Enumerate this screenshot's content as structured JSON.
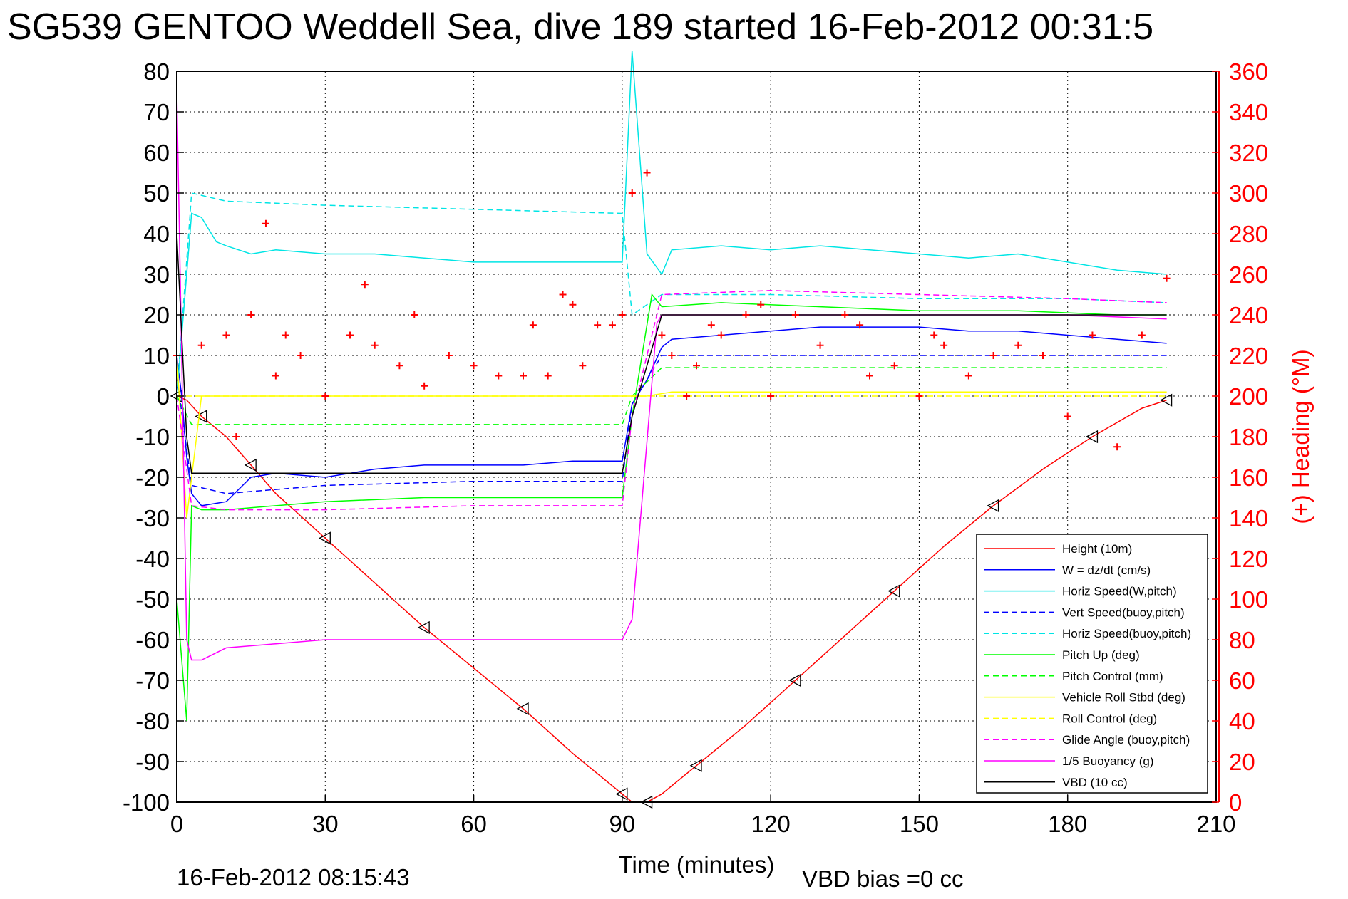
{
  "colors": {
    "height": "#ff0000",
    "w": "#0000ff",
    "horiz_speed": "#00e5e5",
    "pitch": "#00ff00",
    "roll": "#ffff00",
    "glide": "#ff00ff",
    "buoyancy": "#ff00ff",
    "vbd": "#000000",
    "heading": "#ff0000"
  },
  "chart_data": {
    "type": "line",
    "title": "SG539 GENTOO Weddell Sea, dive 189 started 16-Feb-2012 00:31:5",
    "xlabel": "Time (minutes)",
    "ylabel": "",
    "y2label": "(+) Heading (°M)",
    "xlim": [
      0,
      210
    ],
    "ylim": [
      -100,
      80
    ],
    "y2lim": [
      0,
      360
    ],
    "xticks": [
      "0",
      "30",
      "60",
      "90",
      "120",
      "150",
      "180",
      "210"
    ],
    "yticks": [
      "80",
      "70",
      "60",
      "50",
      "40",
      "30",
      "20",
      "10",
      "0",
      "-10",
      "-20",
      "-30",
      "-40",
      "-50",
      "-60",
      "-70",
      "-80",
      "-90",
      "-100"
    ],
    "y2ticks": [
      "360",
      "340",
      "320",
      "300",
      "280",
      "260",
      "240",
      "220",
      "200",
      "180",
      "160",
      "140",
      "120",
      "100",
      "80",
      "60",
      "40",
      "20",
      "0"
    ],
    "grid": true,
    "legend_position": "bottom-right",
    "legend": [
      {
        "label": "Height (10m)",
        "color": "#ff0000",
        "dash": false
      },
      {
        "label": "W = dz/dt (cm/s)",
        "color": "#0000ff",
        "dash": false
      },
      {
        "label": "Horiz Speed(W,pitch)",
        "color": "#00e5e5",
        "dash": false
      },
      {
        "label": "Vert Speed(buoy,pitch)",
        "color": "#0000ff",
        "dash": true
      },
      {
        "label": "Horiz Speed(buoy,pitch)",
        "color": "#00e5e5",
        "dash": true
      },
      {
        "label": "Pitch Up (deg)",
        "color": "#00ff00",
        "dash": false
      },
      {
        "label": "Pitch Control (mm)",
        "color": "#00ff00",
        "dash": true
      },
      {
        "label": "Vehicle Roll Stbd (deg)",
        "color": "#ffff00",
        "dash": false
      },
      {
        "label": "Roll Control (deg)",
        "color": "#ffff00",
        "dash": true
      },
      {
        "label": "Glide Angle (buoy,pitch)",
        "color": "#ff00ff",
        "dash": true
      },
      {
        "label": "1/5 Buoyancy (g)",
        "color": "#ff00ff",
        "dash": false
      },
      {
        "label": "VBD (10 cc)",
        "color": "#000000",
        "dash": false
      }
    ],
    "series": [
      {
        "name": "Height (10m)",
        "x": [
          0,
          2,
          5,
          10,
          15,
          20,
          30,
          40,
          50,
          60,
          70,
          80,
          90,
          92,
          95,
          98,
          105,
          115,
          125,
          135,
          145,
          155,
          165,
          175,
          185,
          195,
          200
        ],
        "y": [
          0,
          -1,
          -5,
          -10,
          -17,
          -24,
          -35,
          -46,
          -57,
          -67,
          -77,
          -88,
          -98,
          -100,
          -100,
          -98,
          -91,
          -81,
          -70,
          -59,
          -48,
          -37,
          -27,
          -18,
          -10,
          -3,
          -1
        ]
      },
      {
        "name": "W = dz/dt (cm/s)",
        "x": [
          0,
          1,
          2,
          3,
          5,
          10,
          15,
          20,
          30,
          40,
          50,
          60,
          70,
          80,
          90,
          92,
          95,
          98,
          100,
          110,
          120,
          130,
          140,
          150,
          160,
          170,
          180,
          190,
          200
        ],
        "y": [
          10,
          0,
          -15,
          -24,
          -27,
          -26,
          -20,
          -19,
          -20,
          -18,
          -17,
          -17,
          -17,
          -16,
          -16,
          -2,
          4,
          12,
          14,
          15,
          16,
          17,
          17,
          17,
          16,
          16,
          15,
          14,
          13
        ]
      },
      {
        "name": "Horiz Speed(W,pitch)",
        "x": [
          0,
          2,
          3,
          5,
          8,
          10,
          15,
          20,
          30,
          40,
          50,
          60,
          70,
          80,
          90,
          92,
          95,
          98,
          100,
          110,
          120,
          130,
          140,
          150,
          160,
          170,
          180,
          190,
          200
        ],
        "y": [
          0,
          30,
          45,
          44,
          38,
          37,
          35,
          36,
          35,
          35,
          34,
          33,
          33,
          33,
          33,
          85,
          35,
          30,
          36,
          37,
          36,
          37,
          36,
          35,
          34,
          35,
          33,
          31,
          30
        ]
      },
      {
        "name": "Vert Speed(buoy,pitch)",
        "x": [
          0,
          3,
          10,
          30,
          60,
          90,
          92,
          98,
          120,
          150,
          180,
          200
        ],
        "y": [
          5,
          -22,
          -24,
          -22,
          -21,
          -21,
          -2,
          10,
          10,
          10,
          10,
          10
        ]
      },
      {
        "name": "Horiz Speed(buoy,pitch)",
        "x": [
          0,
          3,
          10,
          30,
          60,
          90,
          92,
          98,
          120,
          150,
          180,
          200
        ],
        "y": [
          0,
          50,
          48,
          47,
          46,
          45,
          20,
          25,
          25,
          24,
          24,
          23
        ]
      },
      {
        "name": "Pitch Up (deg)",
        "x": [
          0,
          2,
          3,
          5,
          10,
          20,
          30,
          50,
          70,
          90,
          92,
          96,
          98,
          110,
          130,
          150,
          170,
          190,
          200
        ],
        "y": [
          -50,
          -80,
          -27,
          -28,
          -28,
          -27,
          -26,
          -25,
          -25,
          -25,
          -5,
          25,
          22,
          23,
          22,
          21,
          21,
          20,
          20
        ]
      },
      {
        "name": "Pitch Control (mm)",
        "x": [
          0,
          3,
          10,
          30,
          60,
          90,
          92,
          98,
          120,
          150,
          180,
          200
        ],
        "y": [
          0,
          -7,
          -7,
          -7,
          -7,
          -7,
          0,
          7,
          7,
          7,
          7,
          7
        ]
      },
      {
        "name": "Vehicle Roll Stbd (deg)",
        "x": [
          0,
          2,
          5,
          20,
          40,
          60,
          80,
          90,
          95,
          100,
          120,
          140,
          160,
          180,
          200
        ],
        "y": [
          10,
          -30,
          0,
          0,
          0,
          0,
          0,
          0,
          0,
          1,
          1,
          1,
          1,
          1,
          1
        ]
      },
      {
        "name": "Roll Control (deg)",
        "x": [
          0,
          3,
          30,
          60,
          90,
          95,
          120,
          150,
          180,
          200
        ],
        "y": [
          0,
          0,
          0,
          0,
          0,
          0,
          0,
          0,
          0,
          0
        ]
      },
      {
        "name": "Glide Angle (buoy,pitch)",
        "x": [
          0,
          3,
          10,
          30,
          60,
          90,
          92,
          98,
          120,
          150,
          180,
          200
        ],
        "y": [
          0,
          -27,
          -28,
          -28,
          -27,
          -27,
          -5,
          25,
          26,
          25,
          24,
          23
        ]
      },
      {
        "name": "1/5 Buoyancy (g)",
        "x": [
          0,
          1,
          2,
          3,
          5,
          10,
          20,
          30,
          60,
          90,
          92,
          97,
          98,
          120,
          150,
          180,
          200
        ],
        "y": [
          75,
          10,
          -60,
          -65,
          -65,
          -62,
          -61,
          -60,
          -60,
          -60,
          -55,
          18,
          20,
          20,
          20,
          20,
          19
        ]
      },
      {
        "name": "VBD (10 cc)",
        "x": [
          0,
          2,
          3,
          90,
          92,
          98,
          200
        ],
        "y": [
          40,
          -10,
          -19,
          -19,
          -5,
          20,
          20
        ]
      },
      {
        "name": "(+) Heading (°M)",
        "axis": "right",
        "x": [
          0,
          5,
          10,
          12,
          15,
          18,
          20,
          22,
          25,
          30,
          35,
          38,
          40,
          45,
          48,
          50,
          55,
          60,
          65,
          70,
          72,
          75,
          78,
          80,
          82,
          85,
          88,
          90,
          92,
          95,
          98,
          100,
          103,
          105,
          108,
          110,
          115,
          118,
          120,
          125,
          130,
          135,
          138,
          140,
          145,
          150,
          153,
          155,
          160,
          165,
          170,
          175,
          180,
          185,
          190,
          195,
          200
        ],
        "y": [
          220,
          225,
          230,
          180,
          240,
          285,
          210,
          230,
          220,
          200,
          230,
          255,
          225,
          215,
          240,
          205,
          220,
          215,
          210,
          210,
          235,
          210,
          250,
          245,
          215,
          235,
          235,
          240,
          300,
          310,
          230,
          220,
          200,
          215,
          235,
          230,
          240,
          245,
          200,
          240,
          225,
          240,
          235,
          210,
          215,
          200,
          230,
          225,
          210,
          220,
          225,
          220,
          190,
          230,
          175,
          230,
          258
        ]
      }
    ]
  },
  "footer": {
    "date": "16-Feb-2012 08:15:43",
    "vbd_bias": "VBD bias =0 cc"
  }
}
